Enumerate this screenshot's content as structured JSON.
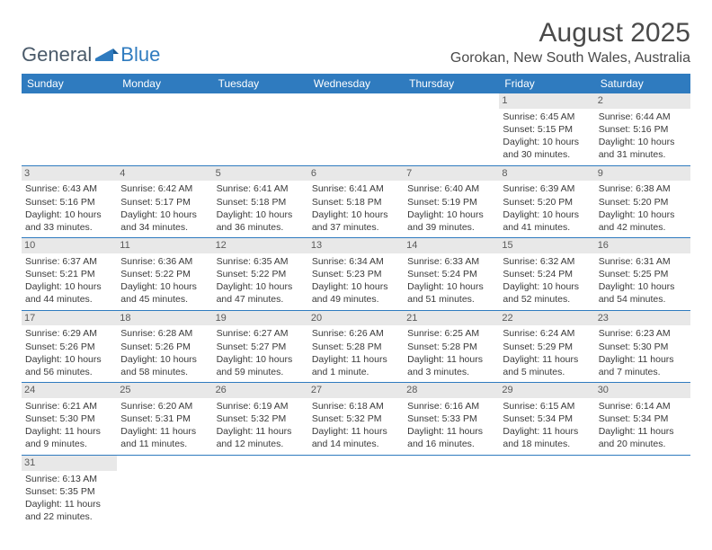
{
  "logo": {
    "text1": "General",
    "text2": "Blue"
  },
  "title": "August 2025",
  "location": "Gorokan, New South Wales, Australia",
  "colors": {
    "header_band": "#2f7bbf",
    "daynum_bg": "#e8e8e8",
    "text": "#3a3a3a",
    "title_text": "#4a4a4a"
  },
  "weekdays": [
    "Sunday",
    "Monday",
    "Tuesday",
    "Wednesday",
    "Thursday",
    "Friday",
    "Saturday"
  ],
  "weeks": [
    [
      null,
      null,
      null,
      null,
      null,
      {
        "n": "1",
        "sr": "Sunrise: 6:45 AM",
        "ss": "Sunset: 5:15 PM",
        "d1": "Daylight: 10 hours",
        "d2": "and 30 minutes."
      },
      {
        "n": "2",
        "sr": "Sunrise: 6:44 AM",
        "ss": "Sunset: 5:16 PM",
        "d1": "Daylight: 10 hours",
        "d2": "and 31 minutes."
      }
    ],
    [
      {
        "n": "3",
        "sr": "Sunrise: 6:43 AM",
        "ss": "Sunset: 5:16 PM",
        "d1": "Daylight: 10 hours",
        "d2": "and 33 minutes."
      },
      {
        "n": "4",
        "sr": "Sunrise: 6:42 AM",
        "ss": "Sunset: 5:17 PM",
        "d1": "Daylight: 10 hours",
        "d2": "and 34 minutes."
      },
      {
        "n": "5",
        "sr": "Sunrise: 6:41 AM",
        "ss": "Sunset: 5:18 PM",
        "d1": "Daylight: 10 hours",
        "d2": "and 36 minutes."
      },
      {
        "n": "6",
        "sr": "Sunrise: 6:41 AM",
        "ss": "Sunset: 5:18 PM",
        "d1": "Daylight: 10 hours",
        "d2": "and 37 minutes."
      },
      {
        "n": "7",
        "sr": "Sunrise: 6:40 AM",
        "ss": "Sunset: 5:19 PM",
        "d1": "Daylight: 10 hours",
        "d2": "and 39 minutes."
      },
      {
        "n": "8",
        "sr": "Sunrise: 6:39 AM",
        "ss": "Sunset: 5:20 PM",
        "d1": "Daylight: 10 hours",
        "d2": "and 41 minutes."
      },
      {
        "n": "9",
        "sr": "Sunrise: 6:38 AM",
        "ss": "Sunset: 5:20 PM",
        "d1": "Daylight: 10 hours",
        "d2": "and 42 minutes."
      }
    ],
    [
      {
        "n": "10",
        "sr": "Sunrise: 6:37 AM",
        "ss": "Sunset: 5:21 PM",
        "d1": "Daylight: 10 hours",
        "d2": "and 44 minutes."
      },
      {
        "n": "11",
        "sr": "Sunrise: 6:36 AM",
        "ss": "Sunset: 5:22 PM",
        "d1": "Daylight: 10 hours",
        "d2": "and 45 minutes."
      },
      {
        "n": "12",
        "sr": "Sunrise: 6:35 AM",
        "ss": "Sunset: 5:22 PM",
        "d1": "Daylight: 10 hours",
        "d2": "and 47 minutes."
      },
      {
        "n": "13",
        "sr": "Sunrise: 6:34 AM",
        "ss": "Sunset: 5:23 PM",
        "d1": "Daylight: 10 hours",
        "d2": "and 49 minutes."
      },
      {
        "n": "14",
        "sr": "Sunrise: 6:33 AM",
        "ss": "Sunset: 5:24 PM",
        "d1": "Daylight: 10 hours",
        "d2": "and 51 minutes."
      },
      {
        "n": "15",
        "sr": "Sunrise: 6:32 AM",
        "ss": "Sunset: 5:24 PM",
        "d1": "Daylight: 10 hours",
        "d2": "and 52 minutes."
      },
      {
        "n": "16",
        "sr": "Sunrise: 6:31 AM",
        "ss": "Sunset: 5:25 PM",
        "d1": "Daylight: 10 hours",
        "d2": "and 54 minutes."
      }
    ],
    [
      {
        "n": "17",
        "sr": "Sunrise: 6:29 AM",
        "ss": "Sunset: 5:26 PM",
        "d1": "Daylight: 10 hours",
        "d2": "and 56 minutes."
      },
      {
        "n": "18",
        "sr": "Sunrise: 6:28 AM",
        "ss": "Sunset: 5:26 PM",
        "d1": "Daylight: 10 hours",
        "d2": "and 58 minutes."
      },
      {
        "n": "19",
        "sr": "Sunrise: 6:27 AM",
        "ss": "Sunset: 5:27 PM",
        "d1": "Daylight: 10 hours",
        "d2": "and 59 minutes."
      },
      {
        "n": "20",
        "sr": "Sunrise: 6:26 AM",
        "ss": "Sunset: 5:28 PM",
        "d1": "Daylight: 11 hours",
        "d2": "and 1 minute."
      },
      {
        "n": "21",
        "sr": "Sunrise: 6:25 AM",
        "ss": "Sunset: 5:28 PM",
        "d1": "Daylight: 11 hours",
        "d2": "and 3 minutes."
      },
      {
        "n": "22",
        "sr": "Sunrise: 6:24 AM",
        "ss": "Sunset: 5:29 PM",
        "d1": "Daylight: 11 hours",
        "d2": "and 5 minutes."
      },
      {
        "n": "23",
        "sr": "Sunrise: 6:23 AM",
        "ss": "Sunset: 5:30 PM",
        "d1": "Daylight: 11 hours",
        "d2": "and 7 minutes."
      }
    ],
    [
      {
        "n": "24",
        "sr": "Sunrise: 6:21 AM",
        "ss": "Sunset: 5:30 PM",
        "d1": "Daylight: 11 hours",
        "d2": "and 9 minutes."
      },
      {
        "n": "25",
        "sr": "Sunrise: 6:20 AM",
        "ss": "Sunset: 5:31 PM",
        "d1": "Daylight: 11 hours",
        "d2": "and 11 minutes."
      },
      {
        "n": "26",
        "sr": "Sunrise: 6:19 AM",
        "ss": "Sunset: 5:32 PM",
        "d1": "Daylight: 11 hours",
        "d2": "and 12 minutes."
      },
      {
        "n": "27",
        "sr": "Sunrise: 6:18 AM",
        "ss": "Sunset: 5:32 PM",
        "d1": "Daylight: 11 hours",
        "d2": "and 14 minutes."
      },
      {
        "n": "28",
        "sr": "Sunrise: 6:16 AM",
        "ss": "Sunset: 5:33 PM",
        "d1": "Daylight: 11 hours",
        "d2": "and 16 minutes."
      },
      {
        "n": "29",
        "sr": "Sunrise: 6:15 AM",
        "ss": "Sunset: 5:34 PM",
        "d1": "Daylight: 11 hours",
        "d2": "and 18 minutes."
      },
      {
        "n": "30",
        "sr": "Sunrise: 6:14 AM",
        "ss": "Sunset: 5:34 PM",
        "d1": "Daylight: 11 hours",
        "d2": "and 20 minutes."
      }
    ],
    [
      {
        "n": "31",
        "sr": "Sunrise: 6:13 AM",
        "ss": "Sunset: 5:35 PM",
        "d1": "Daylight: 11 hours",
        "d2": "and 22 minutes."
      },
      null,
      null,
      null,
      null,
      null,
      null
    ]
  ]
}
